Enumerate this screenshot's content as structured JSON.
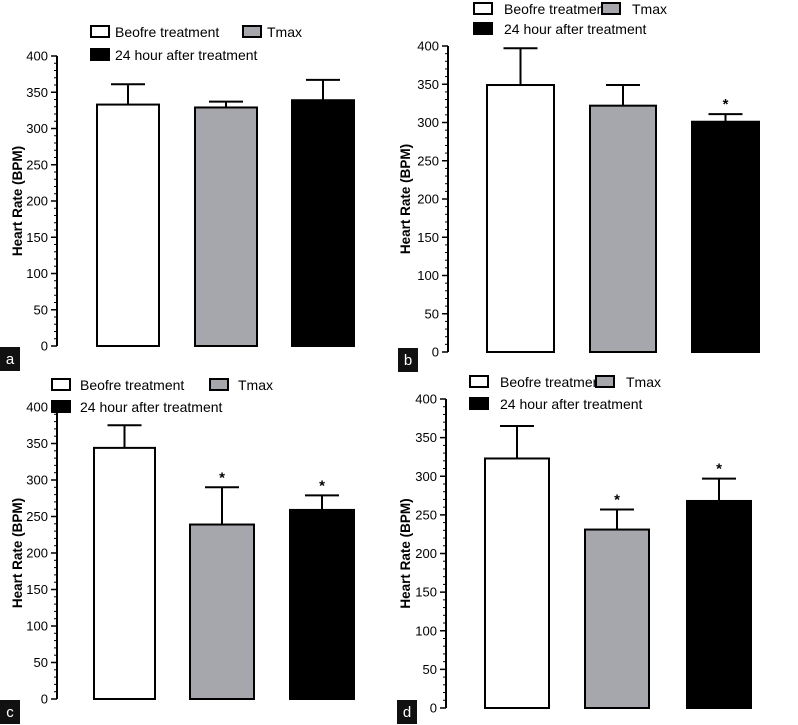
{
  "chart_data": [
    {
      "type": "bar",
      "panel_label": "a",
      "ylabel": "Heart Rate (BPM)",
      "ylim": [
        0,
        400
      ],
      "yticks": [
        "0",
        "50",
        "100",
        "150",
        "200",
        "250",
        "300",
        "350",
        "400"
      ],
      "legend": {
        "placement": "top",
        "entries": [
          {
            "name": "Beofre treatment",
            "color": "#ffffff"
          },
          {
            "name": "Tmax",
            "color": "#a6a6ad"
          },
          {
            "name": "24 hour after treatment",
            "color": "#000000"
          }
        ]
      },
      "series": [
        {
          "name": "Beofre treatment",
          "value": 333,
          "error": 28,
          "significance": ""
        },
        {
          "name": "Tmax",
          "value": 329,
          "error": 8,
          "significance": ""
        },
        {
          "name": "24 hour after treatment",
          "value": 339,
          "error": 28,
          "significance": ""
        }
      ]
    },
    {
      "type": "bar",
      "panel_label": "b",
      "ylabel": "Heart Rate (BPM)",
      "ylim": [
        0,
        400
      ],
      "yticks": [
        "0",
        "50",
        "100",
        "150",
        "200",
        "250",
        "300",
        "350",
        "400"
      ],
      "legend": {
        "placement": "top",
        "entries": [
          {
            "name": "Beofre treatment",
            "color": "#ffffff"
          },
          {
            "name": "Tmax",
            "color": "#a6a6ad"
          },
          {
            "name": "24 hour after treatment",
            "color": "#000000"
          }
        ]
      },
      "series": [
        {
          "name": "Beofre treatment",
          "value": 349,
          "error": 48,
          "significance": ""
        },
        {
          "name": "Tmax",
          "value": 322,
          "error": 27,
          "significance": ""
        },
        {
          "name": "24 hour after treatment",
          "value": 301,
          "error": 10,
          "significance": "*"
        }
      ]
    },
    {
      "type": "bar",
      "panel_label": "c",
      "ylabel": "Heart Rate (BPM)",
      "ylim": [
        0,
        400
      ],
      "yticks": [
        "0",
        "50",
        "100",
        "150",
        "200",
        "250",
        "300",
        "350",
        "400"
      ],
      "legend": {
        "placement": "top",
        "entries": [
          {
            "name": "Beofre treatment",
            "color": "#ffffff"
          },
          {
            "name": "Tmax",
            "color": "#a6a6ad"
          },
          {
            "name": "24 hour after treatment",
            "color": "#000000"
          }
        ]
      },
      "series": [
        {
          "name": "Beofre treatment",
          "value": 344,
          "error": 31,
          "significance": ""
        },
        {
          "name": "Tmax",
          "value": 239,
          "error": 51,
          "significance": "*"
        },
        {
          "name": "24 hour after treatment",
          "value": 259,
          "error": 20,
          "significance": "*"
        }
      ]
    },
    {
      "type": "bar",
      "panel_label": "d",
      "ylabel": "Heart Rate (BPM)",
      "ylim": [
        0,
        400
      ],
      "yticks": [
        "0",
        "50",
        "100",
        "150",
        "200",
        "250",
        "300",
        "350",
        "400"
      ],
      "legend": {
        "placement": "top",
        "entries": [
          {
            "name": "Beofre treatment",
            "color": "#ffffff"
          },
          {
            "name": "Tmax",
            "color": "#a6a6ad"
          },
          {
            "name": "24 hour after treatment",
            "color": "#000000"
          }
        ]
      },
      "series": [
        {
          "name": "Beofre treatment",
          "value": 323,
          "error": 42,
          "significance": ""
        },
        {
          "name": "Tmax",
          "value": 231,
          "error": 26,
          "significance": "*"
        },
        {
          "name": "24 hour after treatment",
          "value": 268,
          "error": 29,
          "significance": "*"
        }
      ]
    }
  ]
}
